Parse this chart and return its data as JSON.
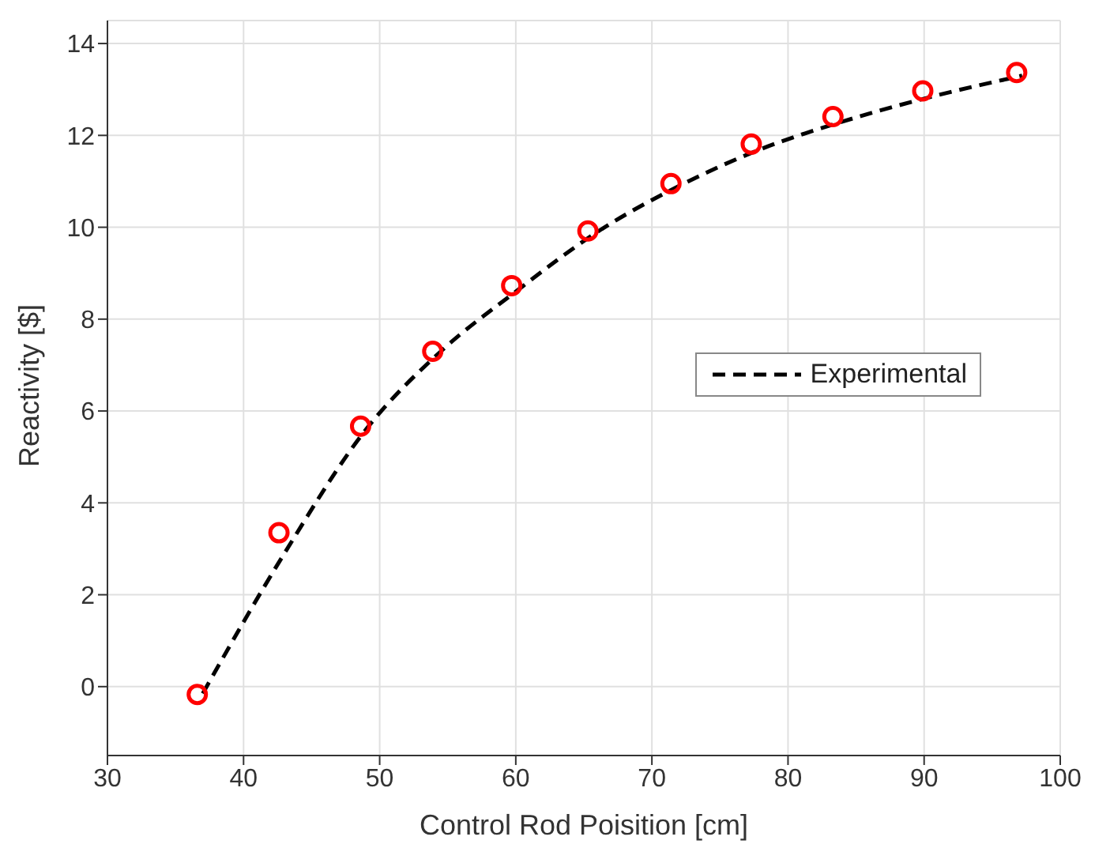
{
  "chart_data": {
    "type": "line",
    "xlabel": "Control Rod Poisition [cm]",
    "ylabel": "Reactivity [$]",
    "xlim": [
      30,
      100
    ],
    "xticks": [
      30,
      40,
      50,
      60,
      70,
      80,
      90,
      100
    ],
    "ylim": [
      -1.5,
      14.5
    ],
    "yticks": [
      0,
      2,
      4,
      6,
      8,
      10,
      12,
      14
    ],
    "grid": true,
    "legend": "right",
    "series": [
      {
        "name": "Experimental",
        "color": "#000000",
        "line_style": "dashed",
        "marker": "none",
        "x": [
          37,
          43,
          49,
          54.5,
          60,
          66,
          72,
          78,
          84,
          90,
          97.2
        ],
        "values": [
          -0.15,
          2.9,
          5.6,
          7.3,
          8.6,
          9.9,
          10.9,
          11.7,
          12.3,
          12.8,
          13.3
        ]
      },
      {
        "type": "scatter",
        "color": "#ff0000",
        "marker": "circle",
        "x": [
          36.6,
          42.6,
          48.6,
          53.9,
          59.7,
          65.3,
          71.4,
          77.3,
          83.3,
          89.9,
          96.8
        ],
        "values": [
          -0.17,
          3.35,
          5.67,
          7.3,
          8.73,
          9.92,
          10.95,
          11.81,
          12.41,
          12.97,
          13.37
        ]
      }
    ]
  }
}
